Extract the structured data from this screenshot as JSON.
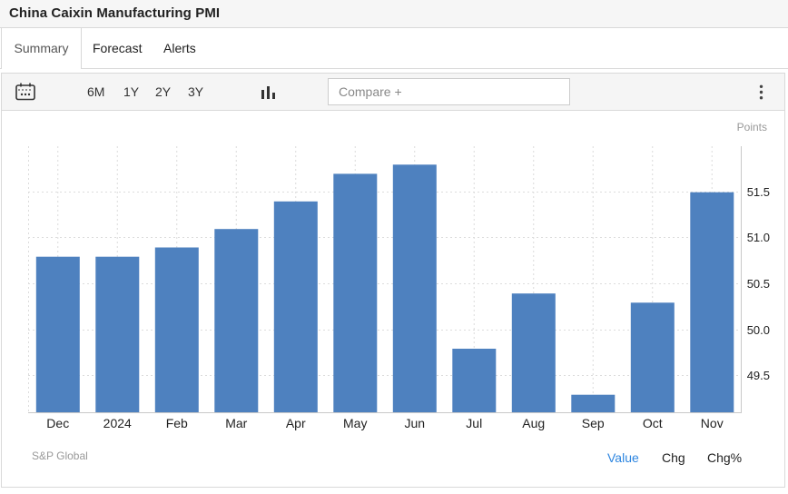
{
  "header": {
    "title": "China Caixin Manufacturing PMI"
  },
  "tabs": [
    {
      "label": "Summary",
      "active": true
    },
    {
      "label": "Forecast",
      "active": false
    },
    {
      "label": "Alerts",
      "active": false
    }
  ],
  "toolbar": {
    "ranges": [
      "6M",
      "1Y",
      "2Y",
      "3Y"
    ],
    "compare_placeholder": "Compare +",
    "icons": [
      "calendar-icon",
      "bar-chart-type-icon",
      "kebab-menu-icon"
    ]
  },
  "chart_data": {
    "type": "bar",
    "title": "China Caixin Manufacturing PMI",
    "categories": [
      "Dec",
      "2024",
      "Feb",
      "Mar",
      "Apr",
      "May",
      "Jun",
      "Jul",
      "Aug",
      "Sep",
      "Oct",
      "Nov"
    ],
    "values": [
      50.8,
      50.8,
      50.9,
      51.1,
      51.4,
      51.7,
      51.8,
      49.8,
      50.4,
      49.3,
      50.3,
      51.5
    ],
    "xlabel": "",
    "ylabel": "Points",
    "ylim": [
      49.1,
      52.0
    ],
    "yticks": [
      49.5,
      50.0,
      50.5,
      51.0,
      51.5
    ],
    "ytick_labels": [
      "49.5",
      "50.0",
      "50.5",
      "51.0",
      "51.5"
    ],
    "grid": true,
    "legend": "none",
    "bar_color": "#4e81bf",
    "grid_color": "#dcdcdc",
    "axis_color": "#c9c9c9"
  },
  "footer": {
    "source": "S&P Global",
    "links": [
      {
        "label": "Value",
        "active": true
      },
      {
        "label": "Chg",
        "active": false
      },
      {
        "label": "Chg%",
        "active": false
      }
    ],
    "active_color": "#2e86e0"
  }
}
